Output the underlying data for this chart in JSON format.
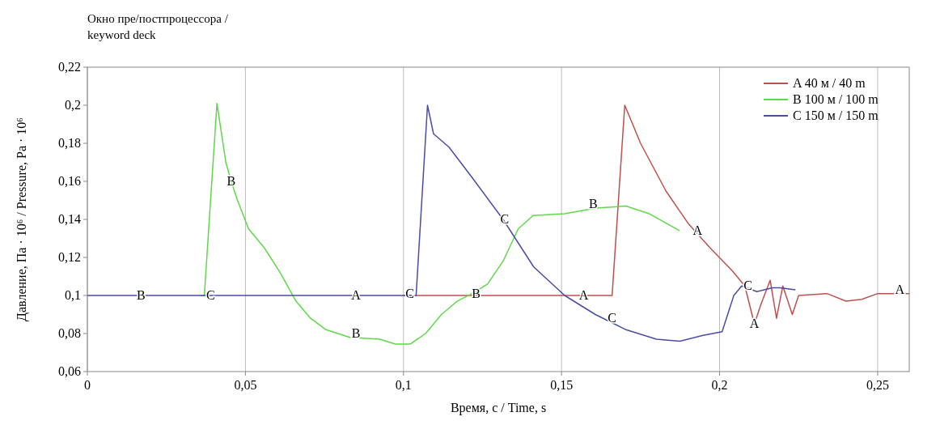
{
  "chart_data": {
    "type": "line",
    "title": "Окно пре/постпроцессора / keyword deck",
    "xlabel": "Время, с / Time, s",
    "ylabel": "Давление, Па · 10⁶ / Pressure, Pa · 10⁶",
    "xlim": [
      0,
      0.26
    ],
    "xticks": [
      {
        "value": 0,
        "label": "0"
      },
      {
        "value": 0.05,
        "label": "0,05"
      },
      {
        "value": 0.1,
        "label": "0,1"
      },
      {
        "value": 0.15,
        "label": "0,15"
      },
      {
        "value": 0.2,
        "label": "0,2"
      },
      {
        "value": 0.25,
        "label": "0,25"
      }
    ],
    "ylim": [
      0.06,
      0.22
    ],
    "yticks": [
      {
        "value": 0.06,
        "label": "0,06"
      },
      {
        "value": 0.08,
        "label": "0,08"
      },
      {
        "value": 0.1,
        "label": "0,1"
      },
      {
        "value": 0.12,
        "label": "0,12"
      },
      {
        "value": 0.14,
        "label": "0,14"
      },
      {
        "value": 0.16,
        "label": "0,16"
      },
      {
        "value": 0.18,
        "label": "0,18"
      },
      {
        "value": 0.2,
        "label": "0,2"
      },
      {
        "value": 0.22,
        "label": "0,22"
      }
    ],
    "grid": "x",
    "legend": "top right",
    "line_style": "solid",
    "series": [
      {
        "name": "A 40 м / 40 m",
        "color": "#c0504d",
        "x": [
          0.1,
          0.166,
          0.17,
          0.175,
          0.183,
          0.19,
          0.197,
          0.204,
          0.208,
          0.211,
          0.213,
          0.216,
          0.218,
          0.22,
          0.223,
          0.225,
          0.234,
          0.24,
          0.245,
          0.25,
          0.26
        ],
        "values": [
          0.1,
          0.1,
          0.2,
          0.18,
          0.155,
          0.138,
          0.125,
          0.113,
          0.105,
          0.085,
          0.095,
          0.108,
          0.088,
          0.105,
          0.09,
          0.1,
          0.101,
          0.097,
          0.098,
          0.101,
          0.101
        ]
      },
      {
        "name": "B 100 м / 100 m",
        "color": "#5fd84a",
        "x": [
          0.036,
          0.037,
          0.041,
          0.0438,
          0.0455,
          0.0475,
          0.051,
          0.056,
          0.061,
          0.066,
          0.0706,
          0.0755,
          0.083,
          0.0925,
          0.0974,
          0.1022,
          0.107,
          0.112,
          0.117,
          0.1217,
          0.1266,
          0.1315,
          0.1363,
          0.141,
          0.151,
          0.161,
          0.1704,
          0.1777,
          0.1874
        ],
        "values": [
          0.1,
          0.1,
          0.201,
          0.17,
          0.16,
          0.15,
          0.135,
          0.125,
          0.112,
          0.097,
          0.088,
          0.082,
          0.078,
          0.077,
          0.0745,
          0.0745,
          0.08,
          0.09,
          0.097,
          0.101,
          0.106,
          0.118,
          0.135,
          0.142,
          0.143,
          0.146,
          0.147,
          0.143,
          0.134
        ]
      },
      {
        "name": "C 150 м / 150 m",
        "color": "#4b4ba8",
        "x": [
          0,
          0.104,
          0.1076,
          0.1095,
          0.1144,
          0.1217,
          0.1315,
          0.1412,
          0.151,
          0.1607,
          0.1704,
          0.18,
          0.1874,
          0.1948,
          0.2008,
          0.2045,
          0.207,
          0.2118,
          0.2167,
          0.2191,
          0.224
        ],
        "values": [
          0.1,
          0.1,
          0.2,
          0.185,
          0.178,
          0.162,
          0.14,
          0.115,
          0.1,
          0.09,
          0.082,
          0.077,
          0.076,
          0.079,
          0.081,
          0.1,
          0.105,
          0.102,
          0.104,
          0.104,
          0.103
        ]
      }
    ],
    "annotations": [
      {
        "text": "B",
        "x": 0.017,
        "y": 0.1
      },
      {
        "text": "C",
        "x": 0.039,
        "y": 0.1
      },
      {
        "text": "B",
        "x": 0.0455,
        "y": 0.16
      },
      {
        "text": "A",
        "x": 0.085,
        "y": 0.1
      },
      {
        "text": "C",
        "x": 0.102,
        "y": 0.101
      },
      {
        "text": "B",
        "x": 0.085,
        "y": 0.08
      },
      {
        "text": "B",
        "x": 0.123,
        "y": 0.101
      },
      {
        "text": "C",
        "x": 0.132,
        "y": 0.14
      },
      {
        "text": "B",
        "x": 0.16,
        "y": 0.148
      },
      {
        "text": "A",
        "x": 0.157,
        "y": 0.1
      },
      {
        "text": "A",
        "x": 0.193,
        "y": 0.134
      },
      {
        "text": "C",
        "x": 0.166,
        "y": 0.088
      },
      {
        "text": "A",
        "x": 0.211,
        "y": 0.085
      },
      {
        "text": "C",
        "x": 0.209,
        "y": 0.105
      },
      {
        "text": "A",
        "x": 0.257,
        "y": 0.103
      }
    ]
  }
}
